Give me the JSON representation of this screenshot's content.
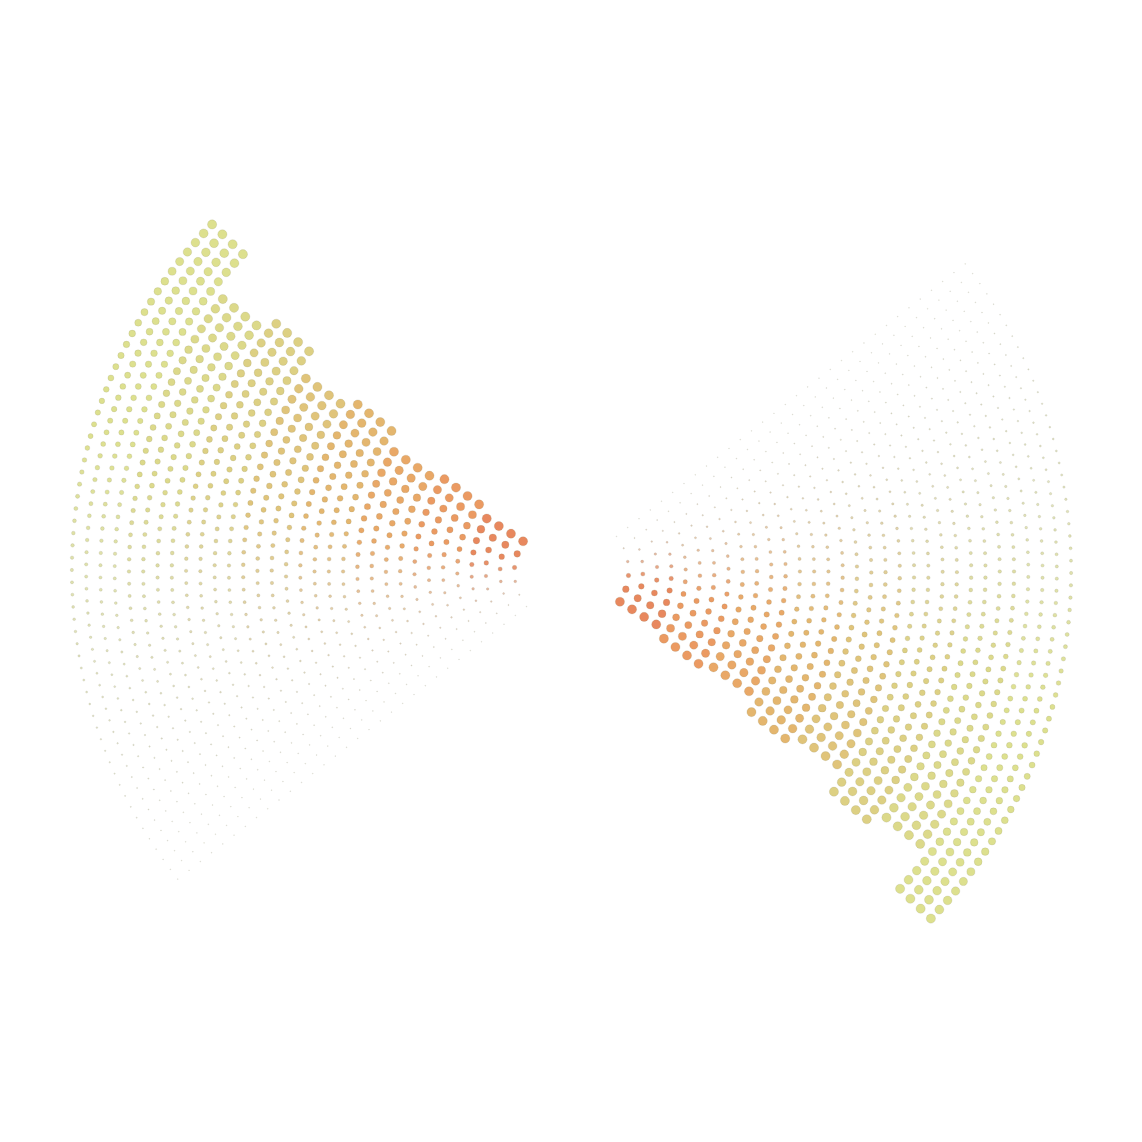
{
  "chart_data": {
    "type": "radial_dot",
    "tick_labels": false,
    "grid": false,
    "categories": [
      null,
      null,
      null,
      null,
      null,
      null,
      null,
      null
    ],
    "colors": [
      "#e8885e",
      "#eb9a62",
      "#e9a867",
      "#e4b66e",
      "#e0c47a",
      "#ddd083",
      "#dcd98a",
      "#dde08e"
    ],
    "series": [
      {
        "base": 218,
        "values": [
          70,
          74,
          72,
          76,
          74,
          78,
          76,
          82
        ]
      },
      {
        "base": 38,
        "values": [
          70,
          74,
          72,
          76,
          74,
          78,
          76,
          82
        ]
      }
    ]
  }
}
